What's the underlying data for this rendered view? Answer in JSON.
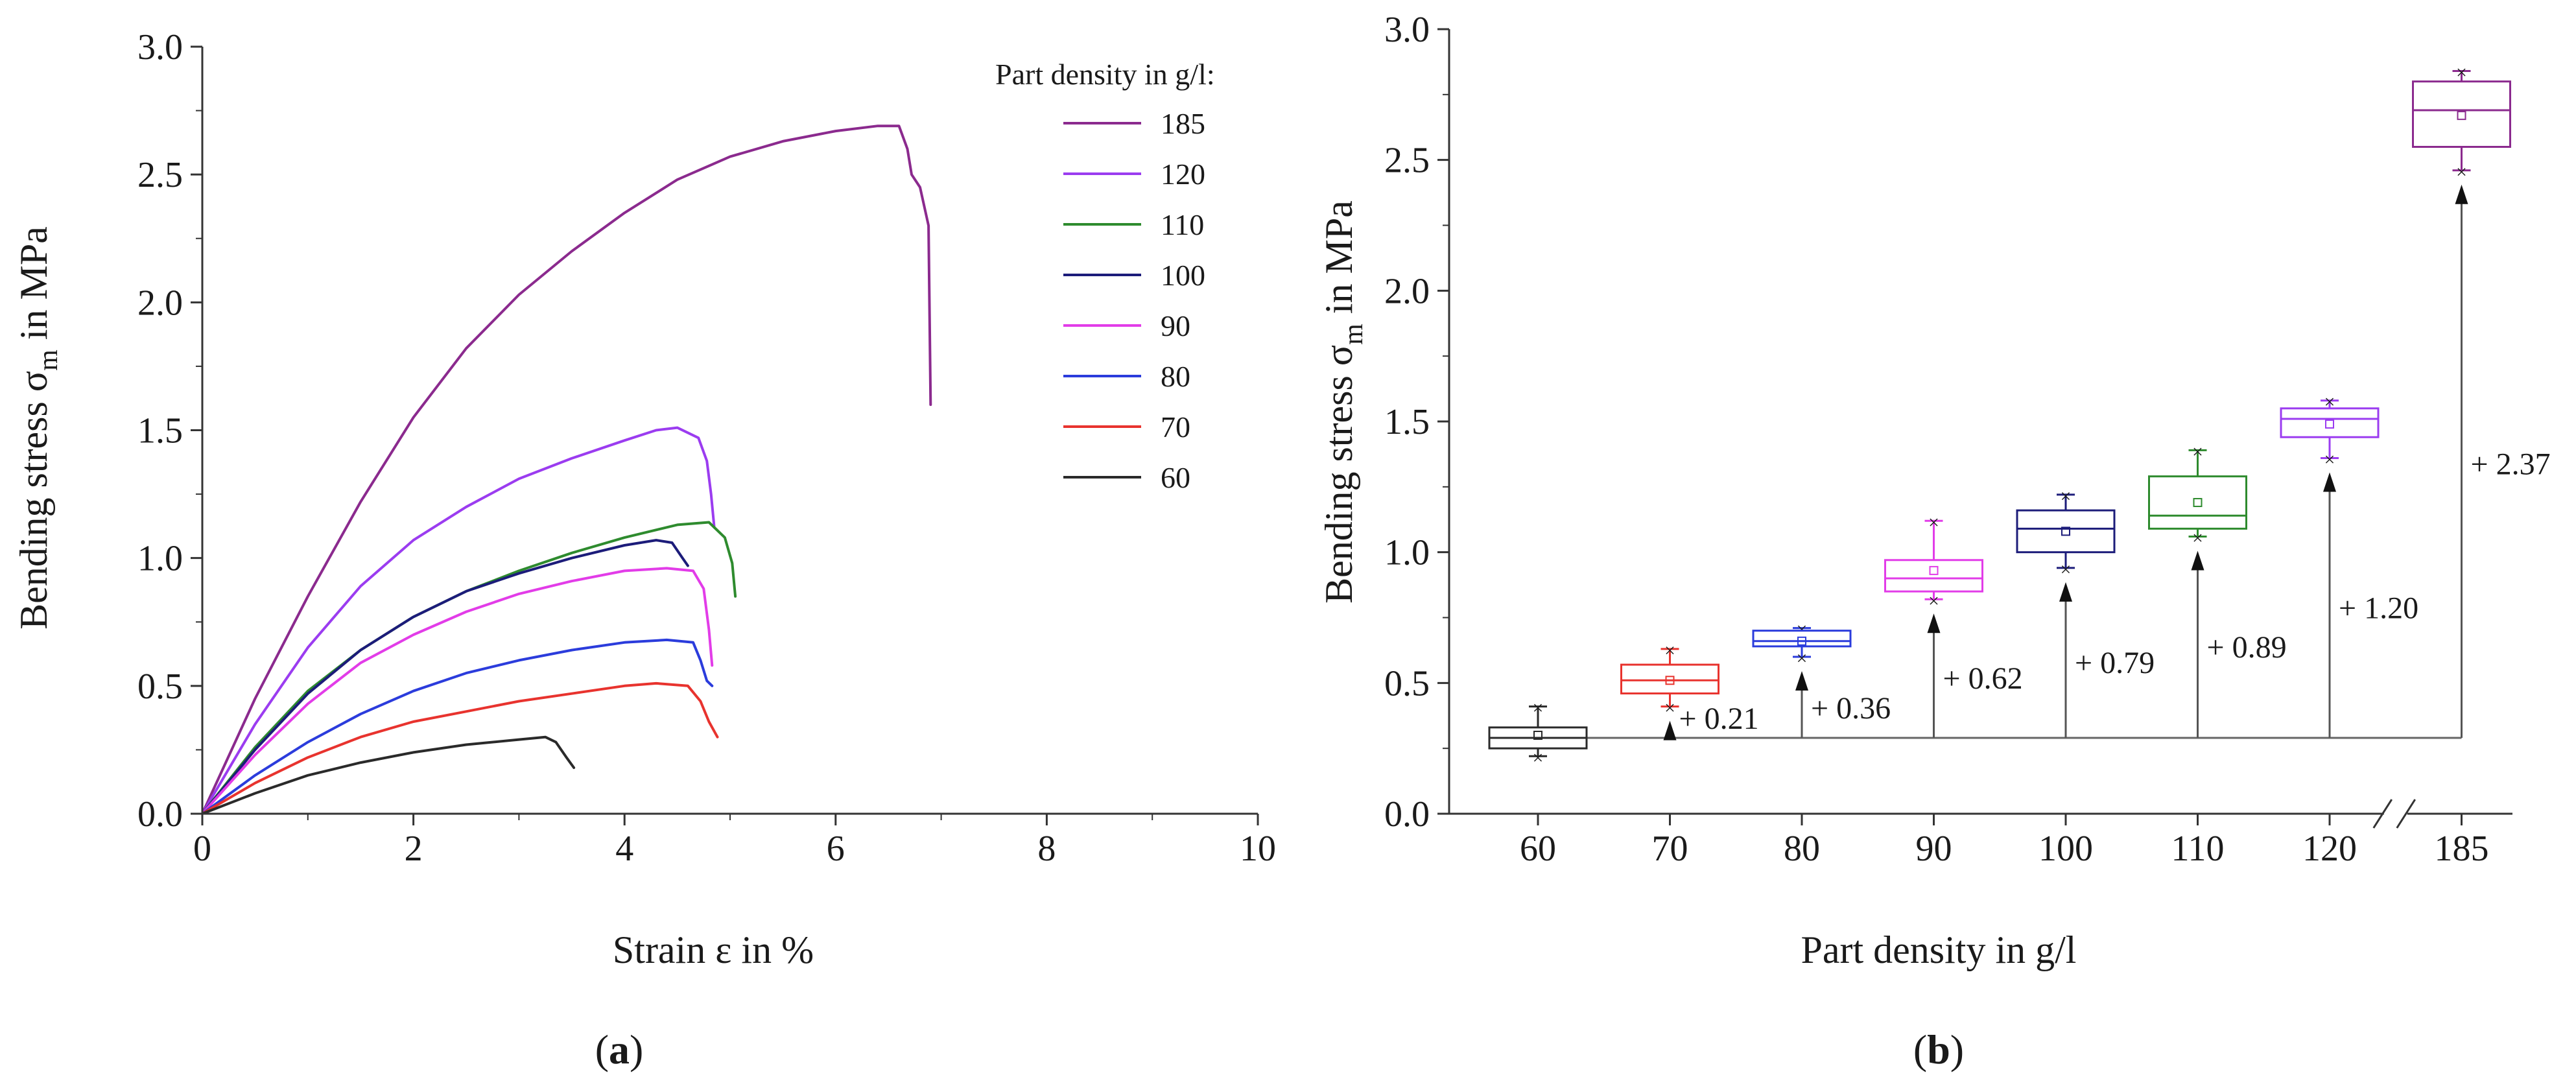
{
  "chart_data": [
    {
      "id": "a",
      "type": "line",
      "panel_label_prefix": "(",
      "panel_label_letter": "a",
      "panel_label_suffix": ")",
      "xlabel": "Strain ε in %",
      "ylabel_main": "Bending stress σ",
      "ylabel_sub": "m",
      "ylabel_tail": " in MPa",
      "xlim": [
        0,
        10
      ],
      "ylim": [
        0,
        3.0
      ],
      "xticks": [
        0,
        2,
        4,
        6,
        8,
        10
      ],
      "xtick_labels": [
        "0",
        "2",
        "4",
        "6",
        "8",
        "10"
      ],
      "yticks": [
        0,
        0.5,
        1.0,
        1.5,
        2.0,
        2.5,
        3.0
      ],
      "ytick_labels": [
        "0.0",
        "0.5",
        "1.0",
        "1.5",
        "2.0",
        "2.5",
        "3.0"
      ],
      "legend_title": "Part density in g/l:",
      "legend_position": "top-right",
      "series": [
        {
          "name": "185",
          "color": "#8b2a8e",
          "points": [
            [
              0,
              0
            ],
            [
              0.5,
              0.45
            ],
            [
              1,
              0.85
            ],
            [
              1.5,
              1.22
            ],
            [
              2,
              1.55
            ],
            [
              2.5,
              1.82
            ],
            [
              3,
              2.03
            ],
            [
              3.5,
              2.2
            ],
            [
              4,
              2.35
            ],
            [
              4.5,
              2.48
            ],
            [
              5,
              2.57
            ],
            [
              5.5,
              2.63
            ],
            [
              6,
              2.67
            ],
            [
              6.4,
              2.69
            ],
            [
              6.6,
              2.69
            ],
            [
              6.68,
              2.6
            ],
            [
              6.72,
              2.5
            ],
            [
              6.8,
              2.45
            ],
            [
              6.88,
              2.3
            ],
            [
              6.9,
              1.6
            ]
          ]
        },
        {
          "name": "120",
          "color": "#9b3cf0",
          "points": [
            [
              0,
              0
            ],
            [
              0.5,
              0.35
            ],
            [
              1,
              0.65
            ],
            [
              1.5,
              0.89
            ],
            [
              2,
              1.07
            ],
            [
              2.5,
              1.2
            ],
            [
              3,
              1.31
            ],
            [
              3.5,
              1.39
            ],
            [
              4,
              1.46
            ],
            [
              4.3,
              1.5
            ],
            [
              4.5,
              1.51
            ],
            [
              4.7,
              1.47
            ],
            [
              4.78,
              1.38
            ],
            [
              4.82,
              1.25
            ],
            [
              4.85,
              1.12
            ]
          ]
        },
        {
          "name": "110",
          "color": "#2e8b2e",
          "points": [
            [
              0,
              0
            ],
            [
              0.5,
              0.26
            ],
            [
              1,
              0.48
            ],
            [
              1.5,
              0.64
            ],
            [
              2,
              0.77
            ],
            [
              2.5,
              0.87
            ],
            [
              3,
              0.95
            ],
            [
              3.5,
              1.02
            ],
            [
              4,
              1.08
            ],
            [
              4.5,
              1.13
            ],
            [
              4.8,
              1.14
            ],
            [
              4.95,
              1.08
            ],
            [
              5.02,
              0.98
            ],
            [
              5.05,
              0.85
            ]
          ]
        },
        {
          "name": "100",
          "color": "#1c1c7a",
          "points": [
            [
              0,
              0
            ],
            [
              0.5,
              0.25
            ],
            [
              1,
              0.47
            ],
            [
              1.5,
              0.64
            ],
            [
              2,
              0.77
            ],
            [
              2.5,
              0.87
            ],
            [
              3,
              0.94
            ],
            [
              3.5,
              1.0
            ],
            [
              4,
              1.05
            ],
            [
              4.3,
              1.07
            ],
            [
              4.45,
              1.06
            ],
            [
              4.55,
              1.0
            ],
            [
              4.6,
              0.97
            ]
          ]
        },
        {
          "name": "90",
          "color": "#e23ce8",
          "points": [
            [
              0,
              0
            ],
            [
              0.5,
              0.23
            ],
            [
              1,
              0.43
            ],
            [
              1.5,
              0.59
            ],
            [
              2,
              0.7
            ],
            [
              2.5,
              0.79
            ],
            [
              3,
              0.86
            ],
            [
              3.5,
              0.91
            ],
            [
              4,
              0.95
            ],
            [
              4.4,
              0.96
            ],
            [
              4.65,
              0.95
            ],
            [
              4.75,
              0.88
            ],
            [
              4.8,
              0.72
            ],
            [
              4.83,
              0.58
            ]
          ]
        },
        {
          "name": "80",
          "color": "#2b3cdc",
          "points": [
            [
              0,
              0
            ],
            [
              0.5,
              0.15
            ],
            [
              1,
              0.28
            ],
            [
              1.5,
              0.39
            ],
            [
              2,
              0.48
            ],
            [
              2.5,
              0.55
            ],
            [
              3,
              0.6
            ],
            [
              3.5,
              0.64
            ],
            [
              4,
              0.67
            ],
            [
              4.4,
              0.68
            ],
            [
              4.65,
              0.67
            ],
            [
              4.72,
              0.6
            ],
            [
              4.78,
              0.52
            ],
            [
              4.83,
              0.5
            ]
          ]
        },
        {
          "name": "70",
          "color": "#e8332e",
          "points": [
            [
              0,
              0
            ],
            [
              0.5,
              0.12
            ],
            [
              1,
              0.22
            ],
            [
              1.5,
              0.3
            ],
            [
              2,
              0.36
            ],
            [
              2.5,
              0.4
            ],
            [
              3,
              0.44
            ],
            [
              3.5,
              0.47
            ],
            [
              4,
              0.5
            ],
            [
              4.3,
              0.51
            ],
            [
              4.6,
              0.5
            ],
            [
              4.72,
              0.44
            ],
            [
              4.8,
              0.36
            ],
            [
              4.88,
              0.3
            ]
          ]
        },
        {
          "name": "60",
          "color": "#2a2a2a",
          "points": [
            [
              0,
              0
            ],
            [
              0.5,
              0.08
            ],
            [
              1,
              0.15
            ],
            [
              1.5,
              0.2
            ],
            [
              2,
              0.24
            ],
            [
              2.5,
              0.27
            ],
            [
              3,
              0.29
            ],
            [
              3.25,
              0.3
            ],
            [
              3.35,
              0.28
            ],
            [
              3.45,
              0.22
            ],
            [
              3.52,
              0.18
            ]
          ]
        }
      ]
    },
    {
      "id": "b",
      "type": "box",
      "panel_label_prefix": "(",
      "panel_label_letter": "b",
      "panel_label_suffix": ")",
      "xlabel": "Part density in g/l",
      "ylabel_main": "Bending stress σ",
      "ylabel_sub": "m",
      "ylabel_tail": " in MPa",
      "ylim": [
        0,
        3.0
      ],
      "yticks": [
        0,
        0.5,
        1.0,
        1.5,
        2.0,
        2.5,
        3.0
      ],
      "ytick_labels": [
        "0.0",
        "0.5",
        "1.0",
        "1.5",
        "2.0",
        "2.5",
        "3.0"
      ],
      "categories": [
        "60",
        "70",
        "80",
        "90",
        "100",
        "110",
        "120",
        "185"
      ],
      "axis_break_between": [
        "120",
        "185"
      ],
      "baseline": 0.29,
      "boxes": [
        {
          "category": "60",
          "color": "#2a2a2a",
          "min": 0.22,
          "q1": 0.25,
          "median": 0.29,
          "q3": 0.33,
          "max": 0.41,
          "mean": 0.3,
          "increase_label": ""
        },
        {
          "category": "70",
          "color": "#e8332e",
          "min": 0.41,
          "q1": 0.46,
          "median": 0.51,
          "q3": 0.57,
          "max": 0.63,
          "mean": 0.51,
          "increase_label": "+ 0.21"
        },
        {
          "category": "80",
          "color": "#2b3cdc",
          "min": 0.6,
          "q1": 0.64,
          "median": 0.66,
          "q3": 0.7,
          "max": 0.71,
          "mean": 0.66,
          "increase_label": "+ 0.36"
        },
        {
          "category": "90",
          "color": "#e23ce8",
          "min": 0.82,
          "q1": 0.85,
          "median": 0.9,
          "q3": 0.97,
          "max": 1.12,
          "mean": 0.93,
          "increase_label": "+ 0.62"
        },
        {
          "category": "100",
          "color": "#1c1c7a",
          "min": 0.94,
          "q1": 1.0,
          "median": 1.09,
          "q3": 1.16,
          "max": 1.22,
          "mean": 1.08,
          "increase_label": "+ 0.79"
        },
        {
          "category": "110",
          "color": "#2e8b2e",
          "min": 1.06,
          "q1": 1.09,
          "median": 1.14,
          "q3": 1.29,
          "max": 1.39,
          "mean": 1.19,
          "increase_label": "+ 0.89"
        },
        {
          "category": "120",
          "color": "#9b3cf0",
          "min": 1.36,
          "q1": 1.44,
          "median": 1.51,
          "q3": 1.55,
          "max": 1.58,
          "mean": 1.49,
          "increase_label": "+ 1.20"
        },
        {
          "category": "185",
          "color": "#8b2a8e",
          "min": 2.46,
          "q1": 2.55,
          "median": 2.69,
          "q3": 2.8,
          "max": 2.84,
          "mean": 2.67,
          "increase_label": "+ 2.37"
        }
      ]
    }
  ]
}
